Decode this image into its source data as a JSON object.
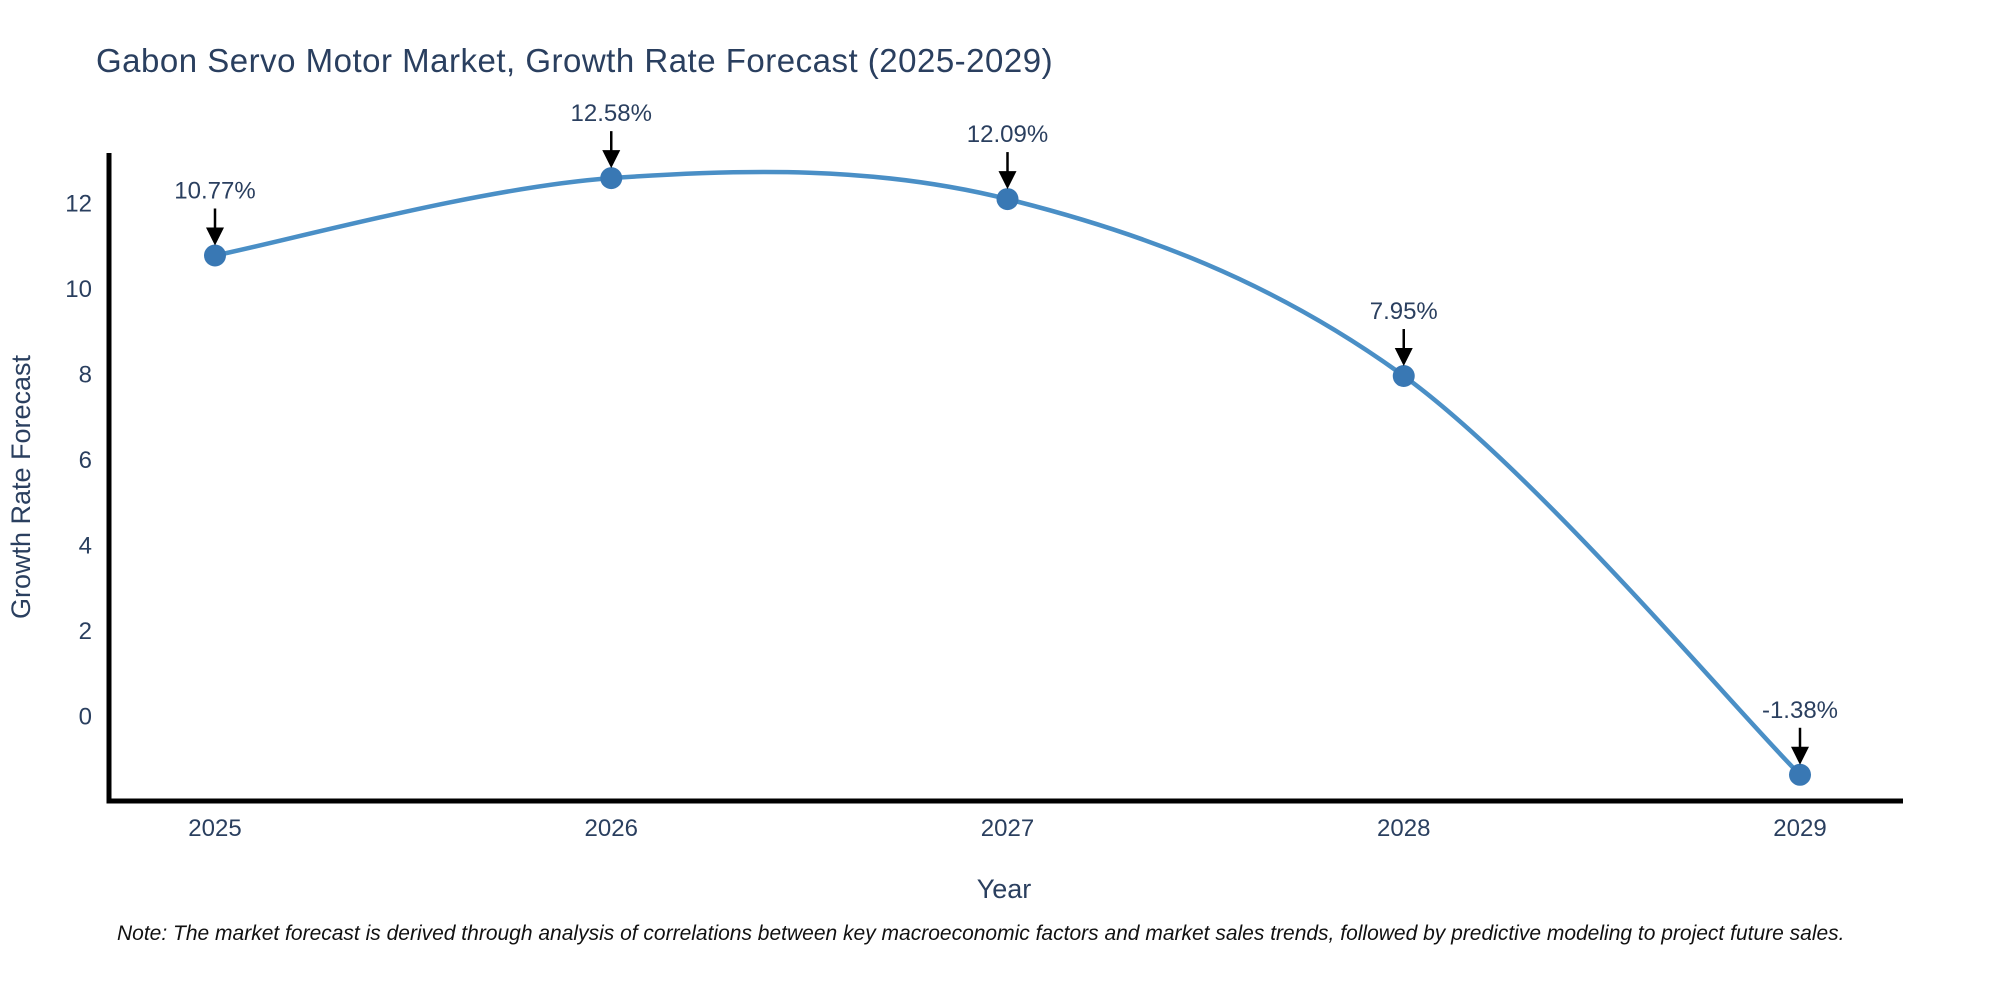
{
  "chart_data": {
    "type": "line",
    "title": "Gabon Servo Motor Market, Growth Rate Forecast (2025-2029)",
    "x": [
      2025,
      2026,
      2027,
      2028,
      2029
    ],
    "y": [
      10.77,
      12.58,
      12.09,
      7.95,
      -1.38
    ],
    "point_labels": [
      "10.77%",
      "12.58%",
      "12.09%",
      "7.95%",
      "-1.38%"
    ],
    "xlabel": "Year",
    "ylabel": "Growth Rate Forecast",
    "y_ticks": [
      0,
      2,
      4,
      6,
      8,
      10,
      12
    ],
    "ylim": [
      -1.97,
      13.17
    ],
    "line_shape": "spline",
    "grid": false,
    "legend_position": "none",
    "annotations_have_arrows": true
  },
  "note": {
    "text": "Note: The market forecast is derived through analysis of correlations between key macroeconomic factors and market sales trends, followed by predictive modeling to project future sales."
  },
  "style": {
    "line_color": "#4a8fc6",
    "marker_color": "#3978b4",
    "axis_color": "#000000",
    "text_color": "#2a3f5f",
    "arrow_color": "#000000",
    "note_color": "#111111",
    "background": "#ffffff"
  }
}
